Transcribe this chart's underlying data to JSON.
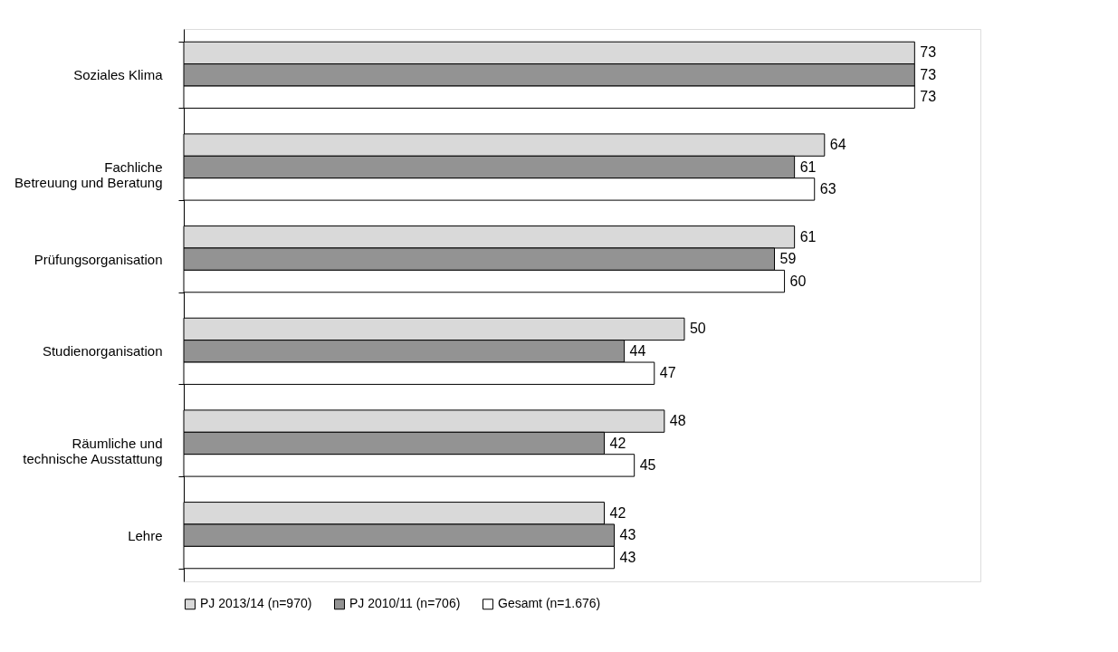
{
  "chart_data": {
    "type": "bar",
    "orientation": "horizontal",
    "categories": [
      "Soziales Klima",
      "Fachliche\nBetreuung und Beratung",
      "Prüfungsorganisation",
      "Studienorganisation",
      "Räumliche und\ntechnische Ausstattung",
      "Lehre"
    ],
    "series": [
      {
        "name": "PJ 2013/14 (n=970)",
        "color": "#d9d9d9",
        "values": [
          73,
          64,
          61,
          50,
          48,
          42
        ]
      },
      {
        "name": "PJ 2010/11 (n=706)",
        "color": "#939393",
        "values": [
          73,
          61,
          59,
          44,
          42,
          43
        ]
      },
      {
        "name": "Gesamt (n=1.676)",
        "color": "#ffffff",
        "values": [
          73,
          63,
          60,
          47,
          45,
          43
        ]
      }
    ],
    "data_labels": true,
    "legend": "bottom"
  }
}
